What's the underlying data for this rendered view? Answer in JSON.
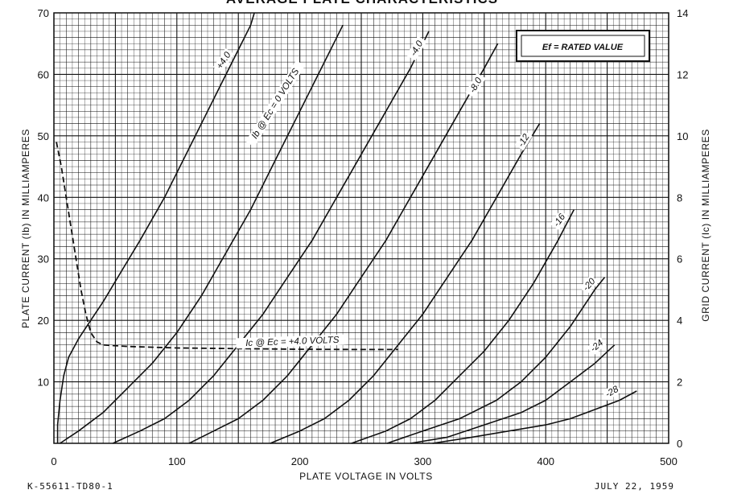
{
  "title": "AVERAGE PLATE CHARACTERISTICS",
  "note": "Ef = RATED VALUE",
  "footer_left": "K-55611-TD80-1",
  "footer_right": "JULY 22, 1959",
  "chart_data": {
    "type": "line",
    "xlabel": "PLATE VOLTAGE IN VOLTS",
    "ylabel": "PLATE CURRENT (Ib) IN MILLIAMPERES",
    "y2label": "GRID CURRENT (Ic) IN MILLIAMPERES",
    "xlim": [
      0,
      500
    ],
    "ylim": [
      0,
      70
    ],
    "y2lim": [
      0,
      14
    ],
    "xticks": [
      "0",
      "100",
      "200",
      "300",
      "400",
      "500"
    ],
    "yticks": [
      "10",
      "20",
      "30",
      "40",
      "50",
      "60",
      "70"
    ],
    "y2ticks": [
      "0",
      "2",
      "4",
      "6",
      "8",
      "10",
      "12",
      "14"
    ],
    "grid": true,
    "series": [
      {
        "name": "+4.0",
        "axis": "left",
        "style": "solid",
        "points": [
          [
            3,
            0
          ],
          [
            3,
            3
          ],
          [
            5,
            7
          ],
          [
            8,
            11
          ],
          [
            12,
            14
          ],
          [
            20,
            17
          ],
          [
            30,
            20
          ],
          [
            40,
            23
          ],
          [
            55,
            28
          ],
          [
            70,
            33
          ],
          [
            90,
            40
          ],
          [
            110,
            48
          ],
          [
            130,
            56
          ],
          [
            150,
            64
          ],
          [
            160,
            68
          ],
          [
            163,
            70
          ]
        ]
      },
      {
        "name": "Ib @ Ec = 0 VOLTS",
        "axis": "left",
        "style": "solid",
        "points": [
          [
            5,
            0
          ],
          [
            20,
            2
          ],
          [
            40,
            5
          ],
          [
            60,
            9
          ],
          [
            80,
            13
          ],
          [
            100,
            18
          ],
          [
            120,
            24
          ],
          [
            140,
            31
          ],
          [
            160,
            38
          ],
          [
            180,
            46
          ],
          [
            200,
            54
          ],
          [
            220,
            62
          ],
          [
            235,
            68
          ]
        ]
      },
      {
        "name": "-4.0",
        "axis": "left",
        "style": "solid",
        "points": [
          [
            48,
            0
          ],
          [
            70,
            2
          ],
          [
            90,
            4
          ],
          [
            110,
            7
          ],
          [
            130,
            11
          ],
          [
            150,
            16
          ],
          [
            170,
            21
          ],
          [
            190,
            27
          ],
          [
            210,
            33
          ],
          [
            230,
            40
          ],
          [
            250,
            47
          ],
          [
            270,
            54
          ],
          [
            290,
            61
          ],
          [
            305,
            67
          ]
        ]
      },
      {
        "name": "-8.0",
        "axis": "left",
        "style": "solid",
        "points": [
          [
            110,
            0
          ],
          [
            130,
            2
          ],
          [
            150,
            4
          ],
          [
            170,
            7
          ],
          [
            190,
            11
          ],
          [
            210,
            16
          ],
          [
            230,
            21
          ],
          [
            250,
            27
          ],
          [
            270,
            33
          ],
          [
            290,
            40
          ],
          [
            310,
            47
          ],
          [
            330,
            54
          ],
          [
            350,
            61
          ],
          [
            361,
            65
          ]
        ]
      },
      {
        "name": "-12",
        "axis": "left",
        "style": "solid",
        "points": [
          [
            176,
            0
          ],
          [
            200,
            2
          ],
          [
            220,
            4
          ],
          [
            240,
            7
          ],
          [
            260,
            11
          ],
          [
            280,
            16
          ],
          [
            300,
            21
          ],
          [
            320,
            27
          ],
          [
            340,
            33
          ],
          [
            360,
            40
          ],
          [
            380,
            47
          ],
          [
            395,
            52
          ]
        ]
      },
      {
        "name": "-16",
        "axis": "left",
        "style": "solid",
        "points": [
          [
            242,
            0
          ],
          [
            270,
            2
          ],
          [
            290,
            4
          ],
          [
            310,
            7
          ],
          [
            330,
            11
          ],
          [
            350,
            15
          ],
          [
            370,
            20
          ],
          [
            390,
            26
          ],
          [
            410,
            33
          ],
          [
            423,
            38
          ]
        ]
      },
      {
        "name": "-20",
        "axis": "left",
        "style": "solid",
        "points": [
          [
            271,
            0
          ],
          [
            300,
            2
          ],
          [
            330,
            4
          ],
          [
            360,
            7
          ],
          [
            380,
            10
          ],
          [
            400,
            14
          ],
          [
            420,
            19
          ],
          [
            440,
            25
          ],
          [
            448,
            27
          ]
        ]
      },
      {
        "name": "-24",
        "axis": "left",
        "style": "solid",
        "points": [
          [
            290,
            0
          ],
          [
            320,
            1
          ],
          [
            350,
            3
          ],
          [
            380,
            5
          ],
          [
            400,
            7
          ],
          [
            420,
            10
          ],
          [
            440,
            13
          ],
          [
            456,
            16
          ]
        ]
      },
      {
        "name": "-28",
        "axis": "left",
        "style": "solid",
        "points": [
          [
            308,
            0
          ],
          [
            340,
            1
          ],
          [
            370,
            2
          ],
          [
            400,
            3
          ],
          [
            420,
            4
          ],
          [
            440,
            5.5
          ],
          [
            460,
            7
          ],
          [
            474,
            8.5
          ]
        ]
      },
      {
        "name": "Ic @ Ec = +4.0 VOLTS",
        "axis": "right",
        "style": "dashed",
        "points": [
          [
            2,
            9.8
          ],
          [
            6,
            9.0
          ],
          [
            10,
            8.0
          ],
          [
            14,
            7.0
          ],
          [
            18,
            6.0
          ],
          [
            22,
            5.0
          ],
          [
            26,
            4.2
          ],
          [
            30,
            3.6
          ],
          [
            35,
            3.3
          ],
          [
            40,
            3.2
          ],
          [
            60,
            3.15
          ],
          [
            100,
            3.1
          ],
          [
            150,
            3.08
          ],
          [
            200,
            3.06
          ],
          [
            250,
            3.05
          ],
          [
            280,
            3.05
          ]
        ]
      }
    ],
    "labels": [
      {
        "text": "+4.0",
        "x": 140,
        "y": 62,
        "rotate": -57
      },
      {
        "text": "Ib @ Ec = 0 VOLTS",
        "x": 182,
        "y": 55,
        "rotate": -58
      },
      {
        "text": "-4.0",
        "x": 297,
        "y": 64,
        "rotate": -60
      },
      {
        "text": "-8.0",
        "x": 345,
        "y": 58,
        "rotate": -60
      },
      {
        "text": "-12",
        "x": 384,
        "y": 49,
        "rotate": -58
      },
      {
        "text": "-16",
        "x": 413,
        "y": 36,
        "rotate": -55
      },
      {
        "text": "-20",
        "x": 437,
        "y": 25.5,
        "rotate": -48
      },
      {
        "text": "-24",
        "x": 443,
        "y": 15.5,
        "rotate": -40
      },
      {
        "text": "-28",
        "x": 455,
        "y": 8,
        "rotate": -30
      },
      {
        "text": "Ic @ Ec = +4.0 VOLTS",
        "x": 194,
        "y": 16.1,
        "rotate": -2
      }
    ]
  }
}
